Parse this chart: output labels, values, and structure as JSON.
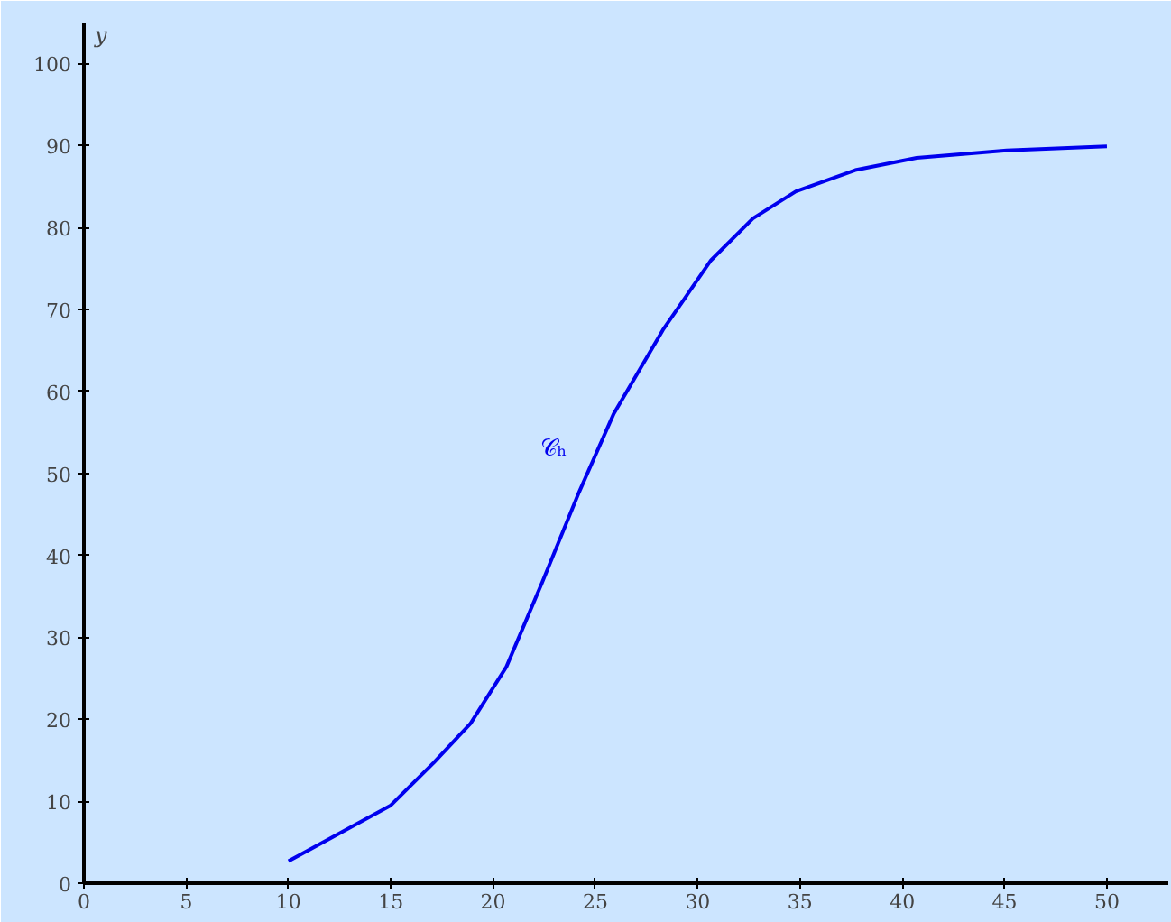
{
  "chart_data": {
    "type": "line",
    "ylabel": "y",
    "xlim": [
      0,
      53
    ],
    "ylim": [
      0,
      105
    ],
    "xticks": [
      0,
      5,
      10,
      15,
      20,
      25,
      30,
      35,
      40,
      45,
      50
    ],
    "yticks": [
      0,
      10,
      20,
      30,
      40,
      50,
      60,
      70,
      80,
      90,
      100
    ],
    "grid": false,
    "series": [
      {
        "name": "𝒞ₕ",
        "color": "#0000ee",
        "x": [
          10.0,
          15.0,
          17.1,
          18.9,
          20.65,
          22.4,
          24.2,
          25.9,
          28.3,
          30.65,
          32.7,
          34.8,
          37.7,
          40.7,
          45.1,
          50.0
        ],
        "values": [
          2.7,
          9.5,
          14.7,
          19.5,
          26.4,
          36.7,
          47.7,
          57.3,
          67.5,
          76.0,
          81.1,
          84.4,
          87.0,
          88.5,
          89.4,
          89.9
        ]
      }
    ],
    "annotations": [
      "0"
    ]
  }
}
